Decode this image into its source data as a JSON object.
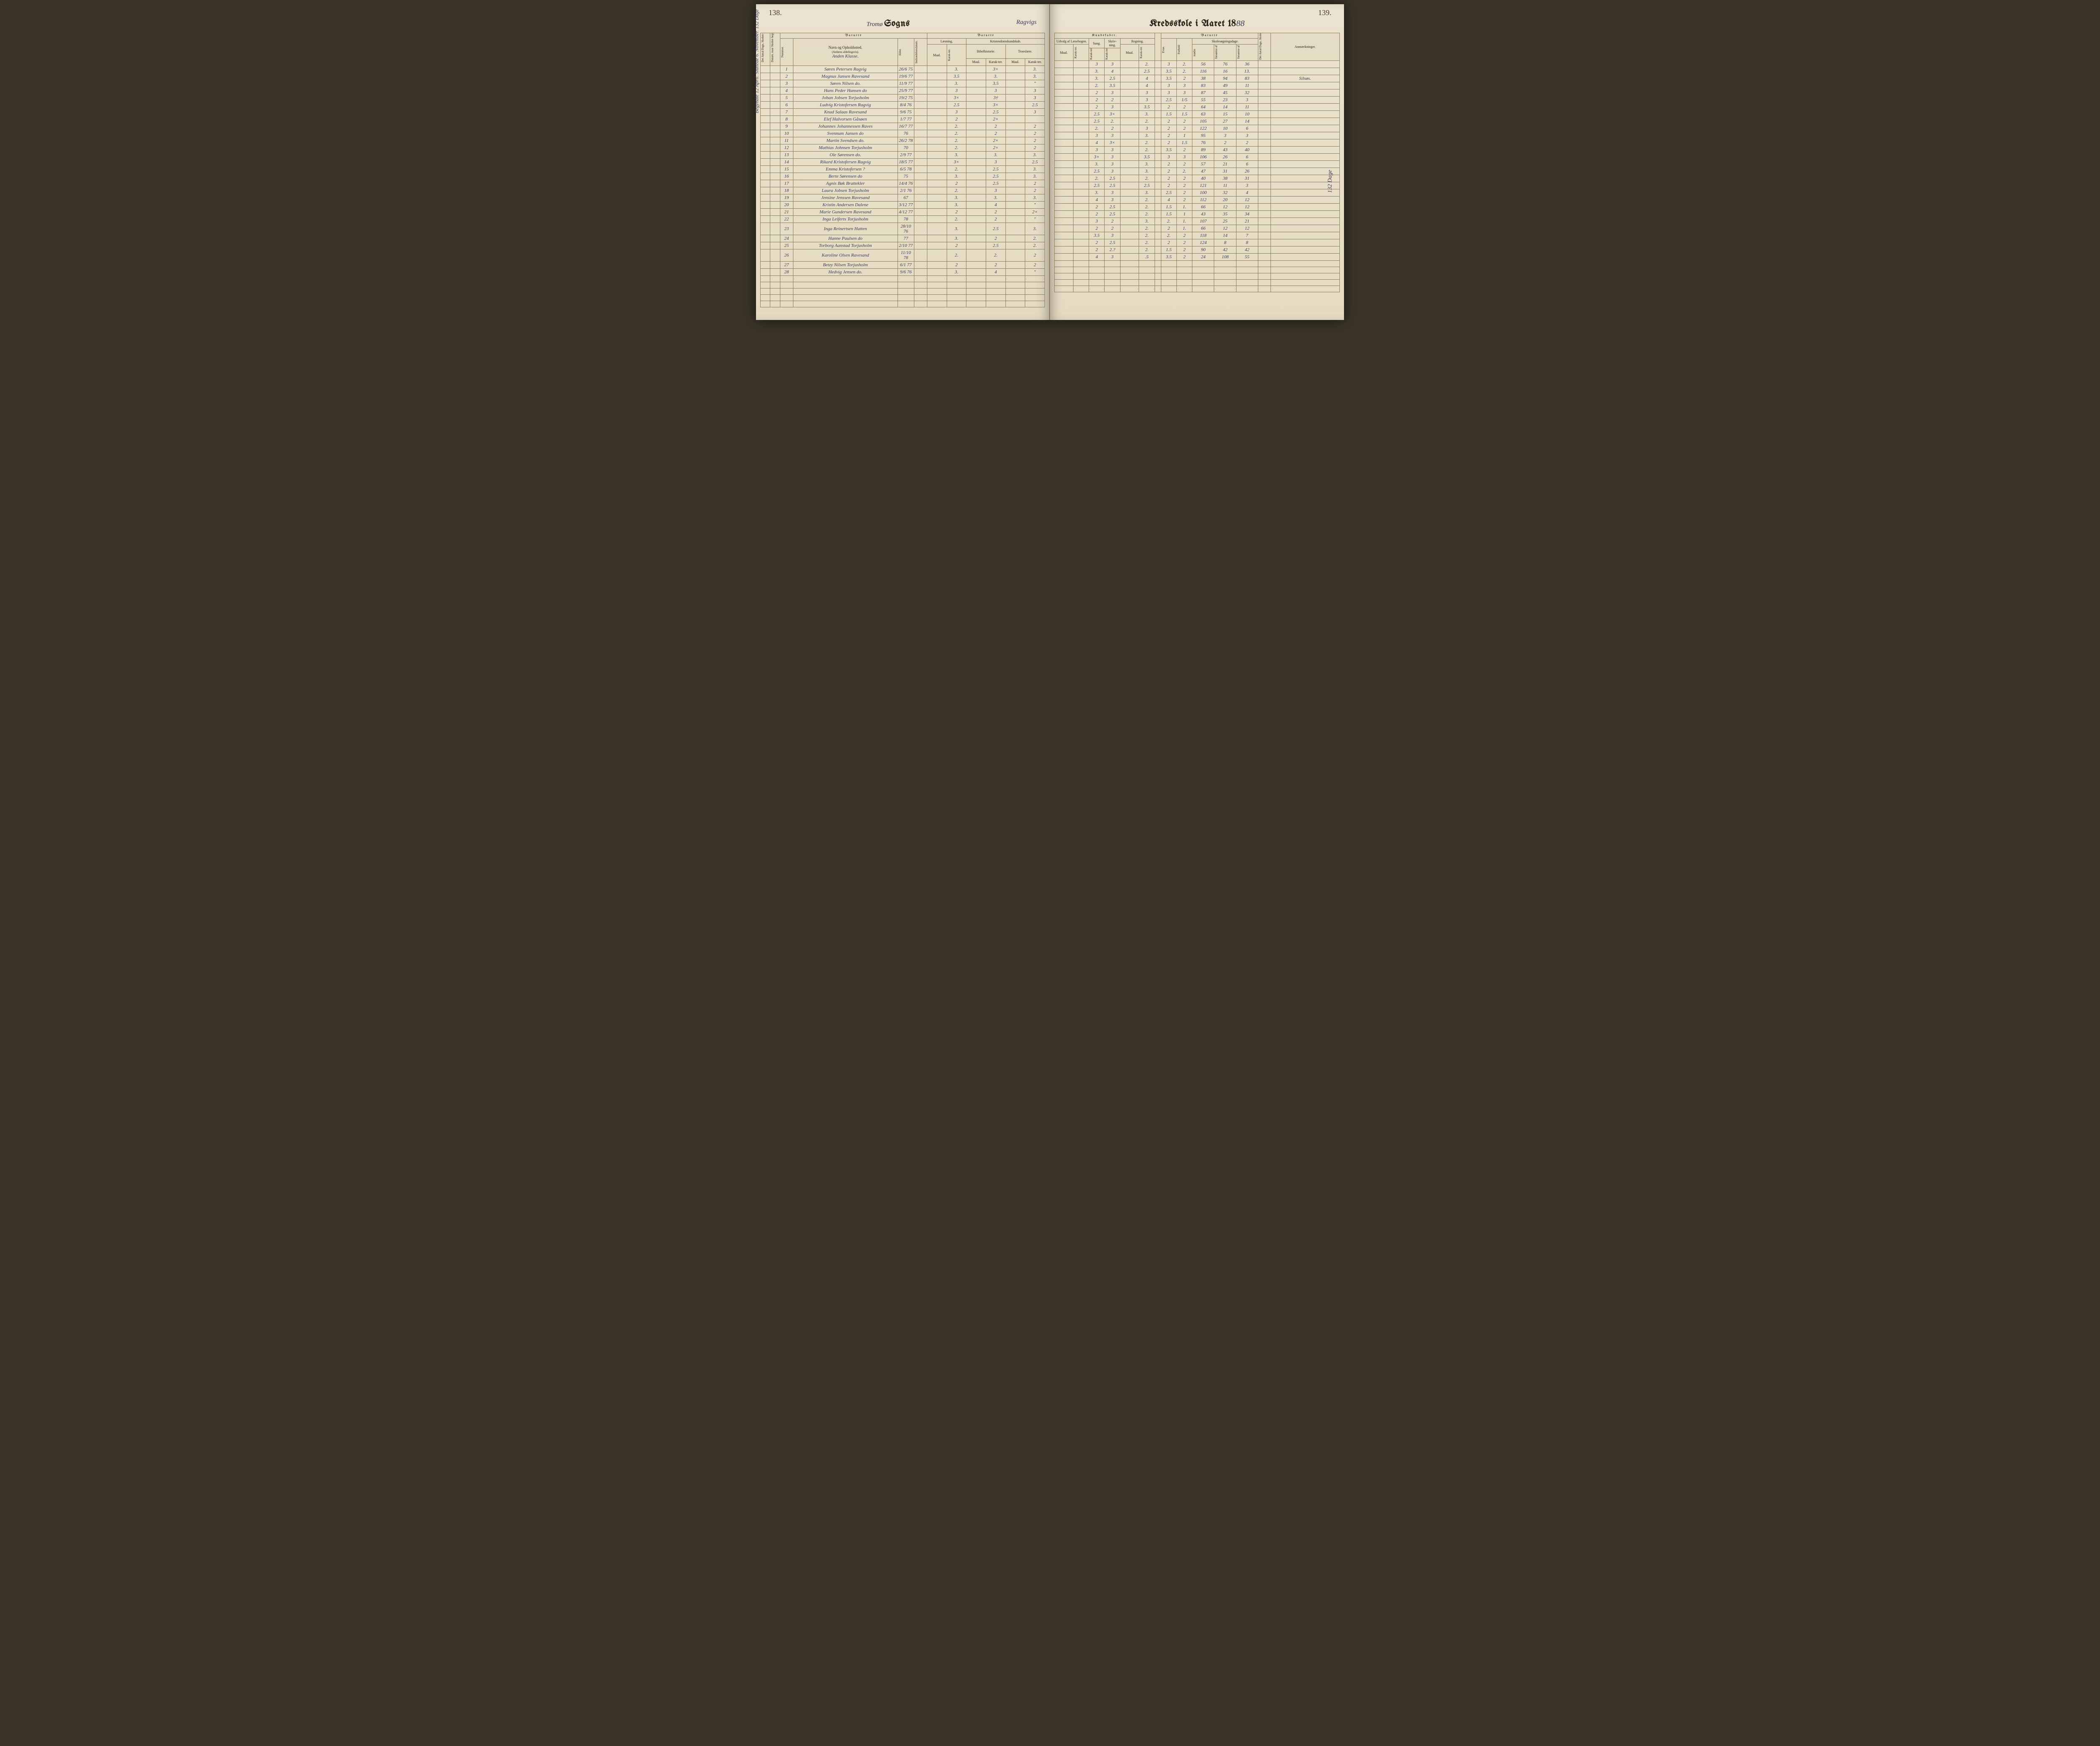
{
  "page_left_number": "138.",
  "page_right_number": "139.",
  "title_left_printed_prefix": "Tromø ",
  "title_left_printed": "Sogns",
  "title_left_cursive": "Ragvigs",
  "title_right_printed": "Kredsskole i Aaret 18",
  "title_right_year": "88",
  "margin_left": "Begyndte 12 April. Sluttede 6. November. 132 Dage",
  "margin_right": "132 Dage",
  "header": {
    "barnets": "Barnets",
    "kundskaber": "Kundskaber.",
    "antal_dage_skolen": "Det Antal Dage, Skolen skal holdes i Kredsen.",
    "datum": "Datum, naar Skolen begynder og slutter hver Omgang.",
    "nummer": "Nummer.",
    "navn": "Navn og Opholdssted.",
    "navn_note": "(Anføres afdelingsvis).",
    "alder": "Alder.",
    "indtraedelse": "Indtrædelsesdatum.",
    "laesning": "Læsning.",
    "kristendom": "Kristendomskundskab.",
    "bibelhistorie": "Bibelhistorie.",
    "troeslaere": "Troeslære.",
    "maal": "Maal.",
    "karakter": "Karak-ter.",
    "udvalg": "Udvalg af Læsebogen.",
    "sang": "Sang.",
    "skrivning": "Skriv-ning.",
    "regning": "Regning.",
    "evne": "Evne.",
    "forhold": "Forhold",
    "skolesogning": "Skolesøgningsdage.",
    "modte": "mødte",
    "forsomte_hele": "forsømte af det Hele.",
    "forsomte_lovlig": "forsømte af lovlig Grund.",
    "antal_dage_holdt": "Det Antal Dage, Skolen i Virkeligheden er holdt.",
    "anmaerkninger": "Anmærkninger."
  },
  "class_label": "Anden Klasse.",
  "remarks_silsos": "Silsøs.",
  "rows": [
    {
      "n": "1",
      "name": "Søren Petersen Ragvig",
      "alder": "26/6 75",
      "l_m": "",
      "l_k": "3.",
      "bh_m": "",
      "bh_k": "3×",
      "tr_m": "",
      "tr_k": "3.",
      "udv": "",
      "sang": "3",
      "skr": "3",
      "reg_m": "",
      "reg_k": "2.",
      "ev": "3",
      "fh": "2.",
      "mo": "56",
      "f1": "76",
      "f2": "36",
      "anm": ""
    },
    {
      "n": "2",
      "name": "Magnus Jansen Ravesand",
      "alder": "19/6 77",
      "l_m": "",
      "l_k": "3.5",
      "bh_m": "",
      "bh_k": "3.",
      "tr_m": "",
      "tr_k": "3.",
      "udv": "",
      "sang": "3.",
      "skr": "4",
      "reg_m": "",
      "reg_k": "2.5",
      "ev": "3.5",
      "fh": "2.",
      "mo": "116",
      "f1": "16",
      "f2": "13.",
      "anm": ""
    },
    {
      "n": "3",
      "name": "Søren Nilsen do.",
      "alder": "11/9 77",
      "l_m": "",
      "l_k": "3.",
      "bh_m": "",
      "bh_k": "3.5",
      "tr_m": "",
      "tr_k": "\"",
      "udv": "",
      "sang": "3.",
      "skr": "2.5",
      "reg_m": "",
      "reg_k": "4",
      "ev": "3.5",
      "fh": "2",
      "mo": "38",
      "f1": "94",
      "f2": "83",
      "anm": "Silsøs."
    },
    {
      "n": "4",
      "name": "Hans Peder Hansen do",
      "alder": "25/9 77",
      "l_m": "",
      "l_k": "3",
      "bh_m": "",
      "bh_k": "3",
      "tr_m": "",
      "tr_k": "3",
      "udv": "",
      "sang": "2.",
      "skr": "3.5",
      "reg_m": "",
      "reg_k": "4",
      "ev": "3",
      "fh": "3",
      "mo": "83",
      "f1": "49",
      "f2": "11",
      "anm": ""
    },
    {
      "n": "5",
      "name": "Johan Jobsen Torjusholm",
      "alder": "19/2 75",
      "l_m": "",
      "l_k": "3×",
      "bh_m": "",
      "bh_k": "3†",
      "tr_m": "",
      "tr_k": "3",
      "udv": "",
      "sang": "2",
      "skr": "3",
      "reg_m": "",
      "reg_k": "3",
      "ev": "3",
      "fh": "3",
      "mo": "87",
      "f1": "45",
      "f2": "32",
      "anm": ""
    },
    {
      "n": "6",
      "name": "Ludvig Kristofersen Ragvig",
      "alder": "8/4 76",
      "l_m": "",
      "l_k": "2.5",
      "bh_m": "",
      "bh_k": "3×",
      "tr_m": "",
      "tr_k": "2.5",
      "udv": "",
      "sang": "2",
      "skr": "2",
      "reg_m": "",
      "reg_k": "3",
      "ev": "2.5",
      "fh": "1/5",
      "mo": "55",
      "f1": "23",
      "f2": "3",
      "anm": ""
    },
    {
      "n": "7",
      "name": "Knud Salaas Ravesand",
      "alder": "9/6 75",
      "l_m": "",
      "l_k": "3",
      "bh_m": "",
      "bh_k": "2.5",
      "tr_m": "",
      "tr_k": "3",
      "udv": "",
      "sang": "2",
      "skr": "3",
      "reg_m": "",
      "reg_k": "3.5",
      "ev": "2",
      "fh": "2",
      "mo": "64",
      "f1": "14",
      "f2": "11",
      "anm": ""
    },
    {
      "n": "8",
      "name": "Elef Halvorsen Gåsøen",
      "alder": "1/7 77",
      "l_m": "",
      "l_k": "2",
      "bh_m": "",
      "bh_k": "2×",
      "tr_m": "",
      "tr_k": "",
      "udv": "",
      "sang": "2.5",
      "skr": "3×",
      "reg_m": "",
      "reg_k": "3.",
      "ev": "1.5",
      "fh": "1.5",
      "mo": "63",
      "f1": "15",
      "f2": "10",
      "anm": ""
    },
    {
      "n": "9",
      "name": "Johannes Johannessen Raves",
      "alder": "16/7 77",
      "l_m": "",
      "l_k": "2.",
      "bh_m": "",
      "bh_k": "2",
      "tr_m": "",
      "tr_k": "2",
      "udv": "",
      "sang": "2.5",
      "skr": "2.",
      "reg_m": "",
      "reg_k": "2.",
      "ev": "2",
      "fh": "2",
      "mo": "105",
      "f1": "27",
      "f2": "14",
      "anm": ""
    },
    {
      "n": "10",
      "name": "Svennum Jansen do",
      "alder": "76",
      "l_m": "",
      "l_k": "2.",
      "bh_m": "",
      "bh_k": "2",
      "tr_m": "",
      "tr_k": "2",
      "udv": "",
      "sang": "2.",
      "skr": "2",
      "reg_m": "",
      "reg_k": "3",
      "ev": "2",
      "fh": "2",
      "mo": "122",
      "f1": "10",
      "f2": "6",
      "anm": ""
    },
    {
      "n": "11",
      "name": "Martin Svendsen do.",
      "alder": "26/2 78",
      "l_m": "",
      "l_k": "2.",
      "bh_m": "",
      "bh_k": "2×",
      "tr_m": "",
      "tr_k": "2",
      "udv": "",
      "sang": "3",
      "skr": "3",
      "reg_m": "",
      "reg_k": "3.",
      "ev": "2",
      "fh": "1",
      "mo": "95",
      "f1": "3",
      "f2": "3",
      "anm": ""
    },
    {
      "n": "12",
      "name": "Mathias Johnsen Torjusholm",
      "alder": "70",
      "l_m": "",
      "l_k": "2.",
      "bh_m": "",
      "bh_k": "2×",
      "tr_m": "",
      "tr_k": "2",
      "udv": "",
      "sang": "4",
      "skr": "3×",
      "reg_m": "",
      "reg_k": "2.",
      "ev": "2",
      "fh": "1.5",
      "mo": "76",
      "f1": "2",
      "f2": "2",
      "anm": ""
    },
    {
      "n": "13",
      "name": "Ole Sørensen do.",
      "alder": "2/9 77",
      "l_m": "",
      "l_k": "3.",
      "bh_m": "",
      "bh_k": "3.",
      "tr_m": "",
      "tr_k": "3.",
      "udv": "",
      "sang": "3",
      "skr": "3",
      "reg_m": "",
      "reg_k": "2.",
      "ev": "3.5",
      "fh": "2",
      "mo": "89",
      "f1": "43",
      "f2": "40",
      "anm": ""
    },
    {
      "n": "14",
      "name": "Rikard Kristofersen Ragvig",
      "alder": "18/5 77",
      "l_m": "",
      "l_k": "3×",
      "bh_m": "",
      "bh_k": "3",
      "tr_m": "",
      "tr_k": "2.5",
      "udv": "",
      "sang": "3×",
      "skr": "3",
      "reg_m": "",
      "reg_k": "3.5",
      "ev": "3",
      "fh": "3",
      "mo": "106",
      "f1": "26",
      "f2": "6",
      "anm": ""
    },
    {
      "n": "15",
      "name": "Emma Kristofersen ?",
      "alder": "6/5 78",
      "l_m": "",
      "l_k": "2.",
      "bh_m": "",
      "bh_k": "2.5",
      "tr_m": "",
      "tr_k": "3.",
      "udv": "",
      "sang": "3.",
      "skr": "3",
      "reg_m": "",
      "reg_k": "3.",
      "ev": "2",
      "fh": "2",
      "mo": "57",
      "f1": "21",
      "f2": "6",
      "anm": ""
    },
    {
      "n": "16",
      "name": "Berte Sørensen do",
      "alder": "75",
      "l_m": "",
      "l_k": "3.",
      "bh_m": "",
      "bh_k": "2.5",
      "tr_m": "",
      "tr_k": "3.",
      "udv": "",
      "sang": "2.5",
      "skr": "3",
      "reg_m": "",
      "reg_k": "3.",
      "ev": "2",
      "fh": "2.",
      "mo": "47",
      "f1": "31",
      "f2": "26",
      "anm": ""
    },
    {
      "n": "17",
      "name": "Agnis Bøk Brattekler",
      "alder": "14/4 76",
      "l_m": "",
      "l_k": "2",
      "bh_m": "",
      "bh_k": "2.5",
      "tr_m": "",
      "tr_k": "2",
      "udv": "",
      "sang": "2.",
      "skr": "2.5",
      "reg_m": "",
      "reg_k": "2.",
      "ev": "2",
      "fh": "2",
      "mo": "40",
      "f1": "38",
      "f2": "31",
      "anm": ""
    },
    {
      "n": "18",
      "name": "Laura Jobsen Torjusholm",
      "alder": "2/1 76",
      "l_m": "",
      "l_k": "2.",
      "bh_m": "",
      "bh_k": "3",
      "tr_m": "",
      "tr_k": "2",
      "udv": "",
      "sang": "2.5",
      "skr": "2.5",
      "reg_m": "",
      "reg_k": "2.5",
      "ev": "2",
      "fh": "2",
      "mo": "121",
      "f1": "11",
      "f2": "3",
      "anm": ""
    },
    {
      "n": "19",
      "name": "Jensine Jenssen Ravesand",
      "alder": "67",
      "l_m": "",
      "l_k": "3.",
      "bh_m": "",
      "bh_k": "3.",
      "tr_m": "",
      "tr_k": "3.",
      "udv": "",
      "sang": "3.",
      "skr": "3",
      "reg_m": "",
      "reg_k": "3.",
      "ev": "2.5",
      "fh": "2",
      "mo": "100",
      "f1": "32",
      "f2": "4",
      "anm": ""
    },
    {
      "n": "20",
      "name": "Kristin Andersen Dalene",
      "alder": "3/12 77",
      "l_m": "",
      "l_k": "3.",
      "bh_m": "",
      "bh_k": "4",
      "tr_m": "",
      "tr_k": "\"",
      "udv": "",
      "sang": "4",
      "skr": "3",
      "reg_m": "",
      "reg_k": "2.",
      "ev": "4",
      "fh": "2",
      "mo": "112",
      "f1": "20",
      "f2": "12",
      "anm": ""
    },
    {
      "n": "21",
      "name": "Marie Gundersen Ravesand",
      "alder": "4/12 77",
      "l_m": "",
      "l_k": "2",
      "bh_m": "",
      "bh_k": "2",
      "tr_m": "",
      "tr_k": "2×",
      "udv": "",
      "sang": "2",
      "skr": "2.5",
      "reg_m": "",
      "reg_k": "2.",
      "ev": "1.5",
      "fh": "1.",
      "mo": "66",
      "f1": "12",
      "f2": "12",
      "anm": ""
    },
    {
      "n": "22",
      "name": "Inga Leiferts Torjusholm",
      "alder": "78",
      "l_m": "",
      "l_k": "2.",
      "bh_m": "",
      "bh_k": "2",
      "tr_m": "",
      "tr_k": "\"",
      "udv": "",
      "sang": "2",
      "skr": "2.5",
      "reg_m": "",
      "reg_k": "2.",
      "ev": "1.5",
      "fh": "1",
      "mo": "43",
      "f1": "35",
      "f2": "34",
      "anm": ""
    },
    {
      "n": "23",
      "name": "Inga Reinertsen Hatten",
      "alder": "28/10 76",
      "l_m": "",
      "l_k": "3.",
      "bh_m": "",
      "bh_k": "2.5",
      "tr_m": "",
      "tr_k": "3.",
      "udv": "",
      "sang": "3",
      "skr": "2",
      "reg_m": "",
      "reg_k": "3.",
      "ev": "2.",
      "fh": "1.",
      "mo": "107",
      "f1": "25",
      "f2": "21",
      "anm": ""
    },
    {
      "n": "24",
      "name": "Hanne Paulsen do",
      "alder": "77",
      "l_m": "",
      "l_k": "3.",
      "bh_m": "",
      "bh_k": "2",
      "tr_m": "",
      "tr_k": "2.",
      "udv": "",
      "sang": "2",
      "skr": "2",
      "reg_m": "",
      "reg_k": "2.",
      "ev": "2",
      "fh": "1.",
      "mo": "66",
      "f1": "12",
      "f2": "12",
      "anm": ""
    },
    {
      "n": "25",
      "name": "Torborg Aanstad Torjusholm",
      "alder": "2/10 77",
      "l_m": "",
      "l_k": "2",
      "bh_m": "",
      "bh_k": "2.5",
      "tr_m": "",
      "tr_k": "2.",
      "udv": "",
      "sang": "3.5",
      "skr": "3",
      "reg_m": "",
      "reg_k": "2.",
      "ev": "2.",
      "fh": "2",
      "mo": "118",
      "f1": "14",
      "f2": "7",
      "anm": ""
    },
    {
      "n": "26",
      "name": "Karoline Olsen Ravesand",
      "alder": "11/10 78",
      "l_m": "",
      "l_k": "2.",
      "bh_m": "",
      "bh_k": "2.",
      "tr_m": "",
      "tr_k": "2",
      "udv": "",
      "sang": "2",
      "skr": "2.5",
      "reg_m": "",
      "reg_k": "2.",
      "ev": "2",
      "fh": "2",
      "mo": "124",
      "f1": "8",
      "f2": "8",
      "anm": ""
    },
    {
      "n": "27",
      "name": "Betzy Nilsen Torjusholm",
      "alder": "6/1 77",
      "l_m": "",
      "l_k": "2",
      "bh_m": "",
      "bh_k": "2",
      "tr_m": "",
      "tr_k": "2",
      "udv": "",
      "sang": "2",
      "skr": "2.?",
      "reg_m": "",
      "reg_k": "2.",
      "ev": "1.5",
      "fh": "2",
      "mo": "90",
      "f1": "42",
      "f2": "42",
      "anm": ""
    },
    {
      "n": "28",
      "name": "Hedvig Jensen do.",
      "alder": "9/6 76",
      "l_m": "",
      "l_k": "3.",
      "bh_m": "",
      "bh_k": "4",
      "tr_m": "",
      "tr_k": "\"",
      "udv": "",
      "sang": "4",
      "skr": "3",
      "reg_m": "",
      "reg_k": ".5",
      "ev": "3.5",
      "fh": "2",
      "mo": "24",
      "f1": "108",
      "f2": "55",
      "anm": ""
    }
  ]
}
